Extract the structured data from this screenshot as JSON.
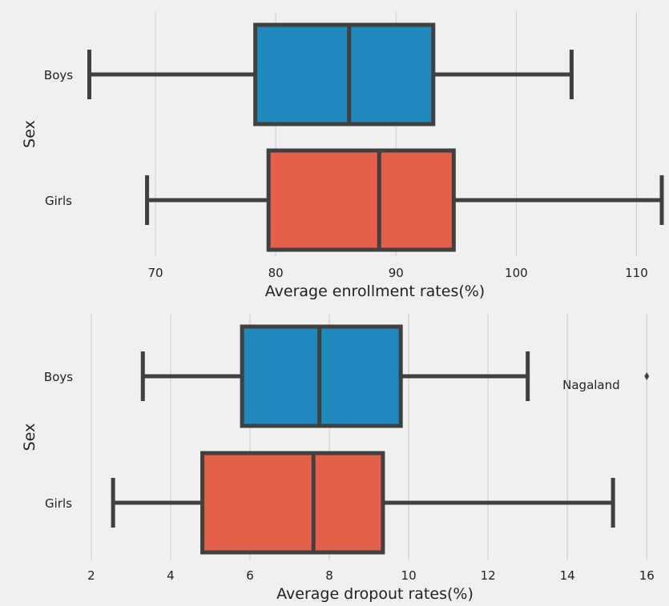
{
  "chart_data": [
    {
      "type": "box",
      "orientation": "horizontal",
      "xlabel": "Average enrollment rates(%)",
      "ylabel": "Sex",
      "xlim": [
        64,
        112.5
      ],
      "xticks": [
        70,
        80,
        90,
        100,
        110
      ],
      "grid": "vertical",
      "categories": [
        "Boys",
        "Girls"
      ],
      "series": [
        {
          "category": "Boys",
          "color": "#1f88bd",
          "whisker_low": 64.5,
          "q1": 78.3,
          "median": 86.1,
          "q3": 93.1,
          "whisker_high": 104.6,
          "outliers": []
        },
        {
          "category": "Girls",
          "color": "#e5604a",
          "whisker_low": 69.3,
          "q1": 79.4,
          "median": 88.6,
          "q3": 94.8,
          "whisker_high": 112.1,
          "outliers": []
        }
      ]
    },
    {
      "type": "box",
      "orientation": "horizontal",
      "xlabel": "Average dropout rates(%)",
      "ylabel": "Sex",
      "xlim": [
        1.8,
        16.5
      ],
      "xticks": [
        2,
        4,
        6,
        8,
        10,
        12,
        14,
        16
      ],
      "grid": "vertical",
      "categories": [
        "Boys",
        "Girls"
      ],
      "series": [
        {
          "category": "Boys",
          "color": "#1f88bd",
          "whisker_low": 3.3,
          "q1": 5.8,
          "median": 7.75,
          "q3": 9.8,
          "whisker_high": 13.0,
          "outliers": [
            16.0
          ]
        },
        {
          "category": "Girls",
          "color": "#e5604a",
          "whisker_low": 2.55,
          "q1": 4.8,
          "median": 7.6,
          "q3": 9.35,
          "whisker_high": 15.15,
          "outliers": []
        }
      ],
      "annotations": [
        {
          "text": "Nagaland",
          "category": "Boys",
          "x": 14.6
        }
      ]
    }
  ]
}
